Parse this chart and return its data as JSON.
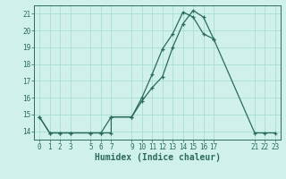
{
  "xlabel": "Humidex (Indice chaleur)",
  "bg_color": "#cff0eb",
  "line_color": "#2a6b5a",
  "grid_color": "#a8ddd5",
  "spine_color": "#2a6b5a",
  "series1_x": [
    0,
    1,
    2,
    3,
    5,
    6,
    7,
    7,
    9,
    10,
    11,
    12,
    13,
    14,
    15,
    16,
    17,
    21,
    22,
    23
  ],
  "series1_y": [
    14.85,
    13.9,
    13.9,
    13.9,
    13.9,
    13.9,
    13.9,
    14.85,
    14.85,
    15.8,
    16.6,
    17.25,
    19.0,
    20.4,
    21.2,
    20.8,
    19.5,
    13.9,
    13.9,
    13.9
  ],
  "series2_x": [
    0,
    1,
    2,
    3,
    5,
    6,
    7,
    9,
    10,
    11,
    12,
    13,
    14,
    15,
    16,
    17
  ],
  "series2_y": [
    14.85,
    13.9,
    13.9,
    13.9,
    13.9,
    13.9,
    14.85,
    14.85,
    16.0,
    17.4,
    18.9,
    19.8,
    21.1,
    20.8,
    19.8,
    19.5
  ],
  "xlim": [
    -0.5,
    23.5
  ],
  "ylim": [
    13.5,
    21.5
  ],
  "xticks": [
    0,
    1,
    2,
    3,
    5,
    6,
    7,
    9,
    10,
    11,
    12,
    13,
    14,
    15,
    16,
    17,
    21,
    22,
    23
  ],
  "yticks": [
    14,
    15,
    16,
    17,
    18,
    19,
    20,
    21
  ],
  "figwidth": 3.2,
  "figheight": 2.0,
  "dpi": 100
}
